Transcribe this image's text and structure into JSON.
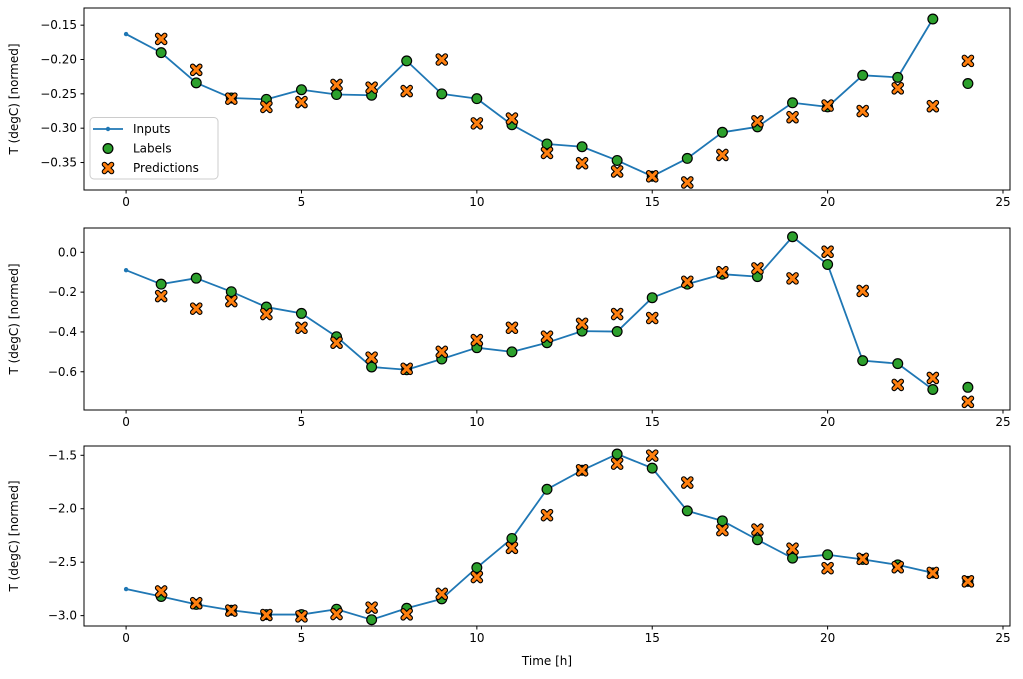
{
  "figure": {
    "background": "#ffffff",
    "kind": "matplotlib time-series window plot, 3 stacked subplots"
  },
  "legend": {
    "items": [
      {
        "label": "Inputs",
        "marker": "line-with-dot",
        "color": "#1f77b4"
      },
      {
        "label": "Labels",
        "marker": "circle",
        "color": "#2ca02c"
      },
      {
        "label": "Predictions",
        "marker": "X",
        "color": "#ff7f0e"
      }
    ],
    "border_color": "#cccccc",
    "background": "#ffffff"
  },
  "chart_data": {
    "type": "line",
    "xlabel": "Time [h]",
    "ylabel": "T (degC) [normed]",
    "xlim": [
      -1.2,
      25.2
    ],
    "xticks": [
      0,
      5,
      10,
      15,
      20,
      25
    ],
    "xtick_labels": [
      "0",
      "5",
      "10",
      "15",
      "20",
      "25"
    ],
    "grid": false,
    "legend_position": "upper-left subplot, lower-left area",
    "series_names": [
      "Inputs",
      "Labels",
      "Predictions"
    ],
    "colors": {
      "inputs": "#1f77b4",
      "labels": "#2ca02c",
      "predictions": "#ff7f0e",
      "marker_edge": "#000000"
    },
    "subplots": [
      {
        "ylabel": "T (degC) [normed]",
        "ylim": [
          -0.39,
          -0.125
        ],
        "yticks": [
          -0.15,
          -0.2,
          -0.25,
          -0.3,
          -0.35
        ],
        "ytick_labels": [
          "−0.15",
          "−0.20",
          "−0.25",
          "−0.30",
          "−0.35"
        ],
        "inputs": {
          "x": [
            0,
            1,
            2,
            3,
            4,
            5,
            6,
            7,
            8,
            9,
            10,
            11,
            12,
            13,
            14,
            15,
            16,
            17,
            18,
            19,
            20,
            21,
            22,
            23
          ],
          "y": [
            -0.163,
            -0.19,
            -0.234,
            -0.256,
            -0.258,
            -0.244,
            -0.251,
            -0.252,
            -0.202,
            -0.25,
            -0.257,
            -0.295,
            -0.323,
            -0.327,
            -0.347,
            -0.37,
            -0.344,
            -0.306,
            -0.298,
            -0.263,
            -0.269,
            -0.223,
            -0.226,
            -0.141
          ]
        },
        "labels": {
          "x": [
            1,
            2,
            3,
            4,
            5,
            6,
            7,
            8,
            9,
            10,
            11,
            12,
            13,
            14,
            15,
            16,
            17,
            18,
            19,
            20,
            21,
            22,
            23,
            24
          ],
          "y": [
            -0.19,
            -0.234,
            -0.256,
            -0.258,
            -0.244,
            -0.251,
            -0.252,
            -0.202,
            -0.25,
            -0.257,
            -0.295,
            -0.323,
            -0.327,
            -0.347,
            -0.37,
            -0.344,
            -0.306,
            -0.298,
            -0.263,
            -0.269,
            -0.223,
            -0.226,
            -0.141,
            -0.235
          ]
        },
        "predictions": {
          "x": [
            1,
            2,
            3,
            4,
            5,
            6,
            7,
            8,
            9,
            10,
            11,
            12,
            13,
            14,
            15,
            16,
            17,
            18,
            19,
            20,
            21,
            22,
            23,
            24
          ],
          "y": [
            -0.17,
            -0.215,
            -0.257,
            -0.269,
            -0.262,
            -0.237,
            -0.241,
            -0.246,
            -0.2,
            -0.293,
            -0.286,
            -0.336,
            -0.351,
            -0.363,
            -0.37,
            -0.379,
            -0.339,
            -0.29,
            -0.284,
            -0.267,
            -0.275,
            -0.242,
            -0.268,
            -0.202
          ]
        }
      },
      {
        "ylabel": "T (degC) [normed]",
        "ylim": [
          -0.792,
          0.122
        ],
        "yticks": [
          0.0,
          -0.2,
          -0.4,
          -0.6
        ],
        "ytick_labels": [
          "0.0",
          "−0.2",
          "−0.4",
          "−0.6"
        ],
        "inputs": {
          "x": [
            0,
            1,
            2,
            3,
            4,
            5,
            6,
            7,
            8,
            9,
            10,
            11,
            12,
            13,
            14,
            15,
            16,
            17,
            18,
            19,
            20,
            21,
            22,
            23
          ],
          "y": [
            -0.09,
            -0.16,
            -0.13,
            -0.198,
            -0.275,
            -0.307,
            -0.424,
            -0.576,
            -0.59,
            -0.536,
            -0.479,
            -0.5,
            -0.454,
            -0.396,
            -0.398,
            -0.228,
            -0.16,
            -0.11,
            -0.122,
            0.078,
            -0.061,
            -0.544,
            -0.559,
            -0.689
          ]
        },
        "labels": {
          "x": [
            1,
            2,
            3,
            4,
            5,
            6,
            7,
            8,
            9,
            10,
            11,
            12,
            13,
            14,
            15,
            16,
            17,
            18,
            19,
            20,
            21,
            22,
            23,
            24
          ],
          "y": [
            -0.16,
            -0.13,
            -0.198,
            -0.275,
            -0.307,
            -0.424,
            -0.576,
            -0.59,
            -0.536,
            -0.479,
            -0.5,
            -0.454,
            -0.396,
            -0.398,
            -0.228,
            -0.16,
            -0.11,
            -0.122,
            0.078,
            -0.061,
            -0.544,
            -0.559,
            -0.689,
            -0.678
          ]
        },
        "predictions": {
          "x": [
            1,
            2,
            3,
            4,
            5,
            6,
            7,
            8,
            9,
            10,
            11,
            12,
            13,
            14,
            15,
            16,
            17,
            18,
            19,
            20,
            21,
            22,
            23,
            24
          ],
          "y": [
            -0.22,
            -0.283,
            -0.245,
            -0.31,
            -0.379,
            -0.454,
            -0.529,
            -0.585,
            -0.5,
            -0.441,
            -0.379,
            -0.424,
            -0.359,
            -0.31,
            -0.33,
            -0.148,
            -0.1,
            -0.081,
            -0.131,
            0.003,
            -0.194,
            -0.666,
            -0.631,
            -0.751
          ]
        }
      },
      {
        "ylabel": "T (degC) [normed]",
        "ylim": [
          -3.097,
          -1.413
        ],
        "yticks": [
          -1.5,
          -2.0,
          -2.5,
          -3.0
        ],
        "ytick_labels": [
          "−1.5",
          "−2.0",
          "−2.5",
          "−3.0"
        ],
        "inputs": {
          "x": [
            0,
            1,
            2,
            3,
            4,
            5,
            6,
            7,
            8,
            9,
            10,
            11,
            12,
            13,
            14,
            15,
            16,
            17,
            18,
            19,
            20,
            21,
            22,
            23
          ],
          "y": [
            -2.751,
            -2.821,
            -2.895,
            -2.95,
            -2.99,
            -2.99,
            -2.94,
            -3.038,
            -2.931,
            -2.843,
            -2.551,
            -2.278,
            -1.818,
            -1.64,
            -1.488,
            -1.62,
            -2.02,
            -2.113,
            -2.29,
            -2.462,
            -2.43,
            -2.474,
            -2.525,
            -2.6
          ]
        },
        "labels": {
          "x": [
            1,
            2,
            3,
            4,
            5,
            6,
            7,
            8,
            9,
            10,
            11,
            12,
            13,
            14,
            15,
            16,
            17,
            18,
            19,
            20,
            21,
            22,
            23,
            24
          ],
          "y": [
            -2.821,
            -2.895,
            -2.95,
            -2.99,
            -2.99,
            -2.94,
            -3.038,
            -2.931,
            -2.843,
            -2.551,
            -2.278,
            -1.818,
            -1.64,
            -1.488,
            -1.62,
            -2.02,
            -2.113,
            -2.29,
            -2.462,
            -2.43,
            -2.474,
            -2.525,
            -2.6,
            -2.679
          ]
        },
        "predictions": {
          "x": [
            1,
            2,
            3,
            4,
            5,
            6,
            7,
            8,
            9,
            10,
            11,
            12,
            13,
            14,
            15,
            16,
            17,
            18,
            19,
            20,
            21,
            22,
            23,
            24
          ],
          "y": [
            -2.774,
            -2.884,
            -2.953,
            -2.994,
            -3.007,
            -2.985,
            -2.925,
            -2.988,
            -2.796,
            -2.639,
            -2.366,
            -2.06,
            -1.64,
            -1.578,
            -1.503,
            -1.755,
            -2.2,
            -2.195,
            -2.374,
            -2.556,
            -2.468,
            -2.547,
            -2.6,
            -2.679
          ]
        }
      }
    ]
  }
}
